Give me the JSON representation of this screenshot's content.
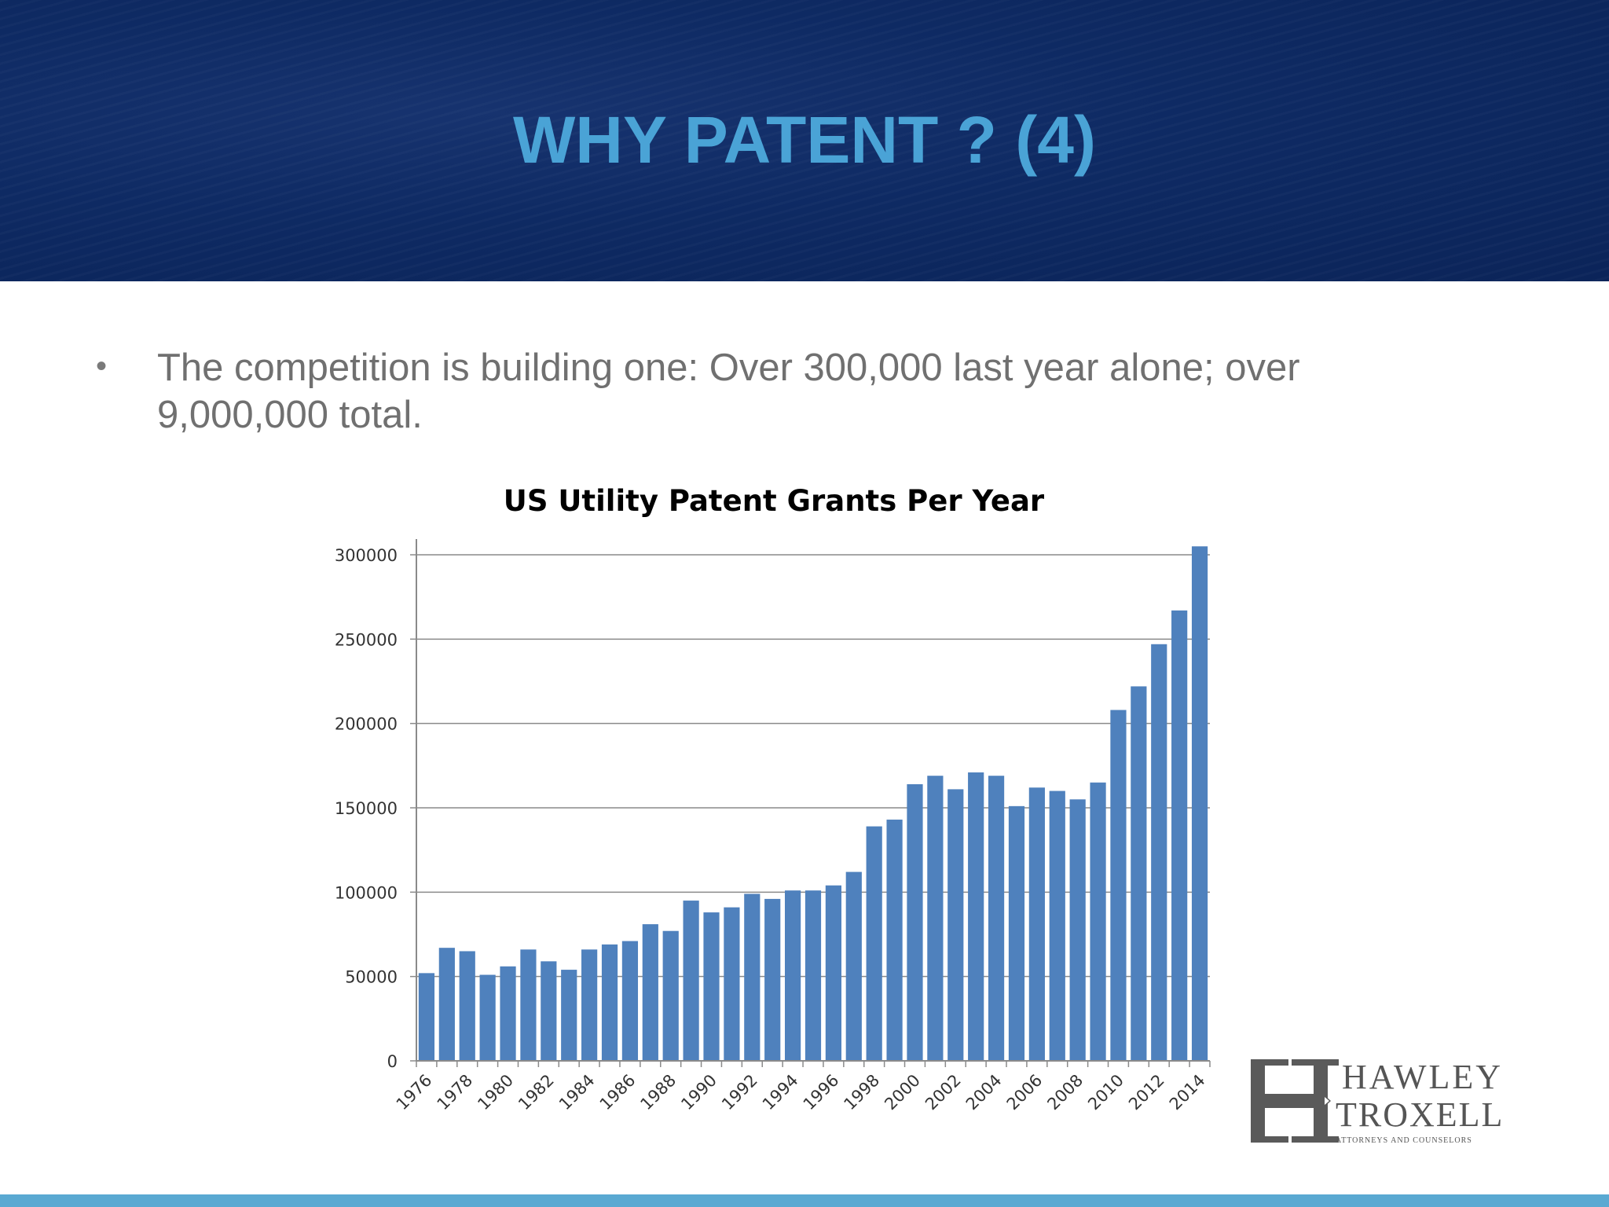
{
  "slide": {
    "title": "WHY PATENT ? (4)",
    "bullet_symbol": "•",
    "bullet_text": "The competition is building one: Over 300,000 last year alone; over 9,000,000 total."
  },
  "chart_data": {
    "type": "bar",
    "title": "US Utility Patent Grants Per Year",
    "xlabel": "",
    "ylabel": "",
    "ylim": [
      0,
      300000
    ],
    "yticks": [
      "0",
      "50000",
      "100000",
      "150000",
      "200000",
      "250000",
      "300000"
    ],
    "grid": true,
    "bar_color": "#4f81bd",
    "categories": [
      "1976",
      "1977",
      "1978",
      "1979",
      "1980",
      "1981",
      "1982",
      "1983",
      "1984",
      "1985",
      "1986",
      "1987",
      "1988",
      "1989",
      "1990",
      "1991",
      "1992",
      "1993",
      "1994",
      "1995",
      "1996",
      "1997",
      "1998",
      "1999",
      "2000",
      "2001",
      "2002",
      "2003",
      "2004",
      "2005",
      "2006",
      "2007",
      "2008",
      "2009",
      "2010",
      "2011",
      "2012",
      "2013",
      "2014"
    ],
    "tick_labels": [
      "1976",
      "1978",
      "1980",
      "1982",
      "1984",
      "1986",
      "1988",
      "1990",
      "1992",
      "1994",
      "1996",
      "1998",
      "2000",
      "2002",
      "2004",
      "2006",
      "2008",
      "2010",
      "2012",
      "2014"
    ],
    "values": [
      52000,
      67000,
      65000,
      51000,
      56000,
      66000,
      59000,
      54000,
      66000,
      69000,
      71000,
      81000,
      77000,
      95000,
      88000,
      91000,
      99000,
      96000,
      101000,
      101000,
      104000,
      112000,
      139000,
      143000,
      164000,
      169000,
      161000,
      171000,
      169000,
      151000,
      162000,
      160000,
      155000,
      165000,
      208000,
      222000,
      247000,
      267000,
      305000
    ]
  },
  "logo": {
    "name": "HAWLEY TROXELL",
    "line1": "HAWLEY",
    "line2": "TROXELL",
    "tagline": "ATTORNEYS AND COUNSELORS"
  }
}
